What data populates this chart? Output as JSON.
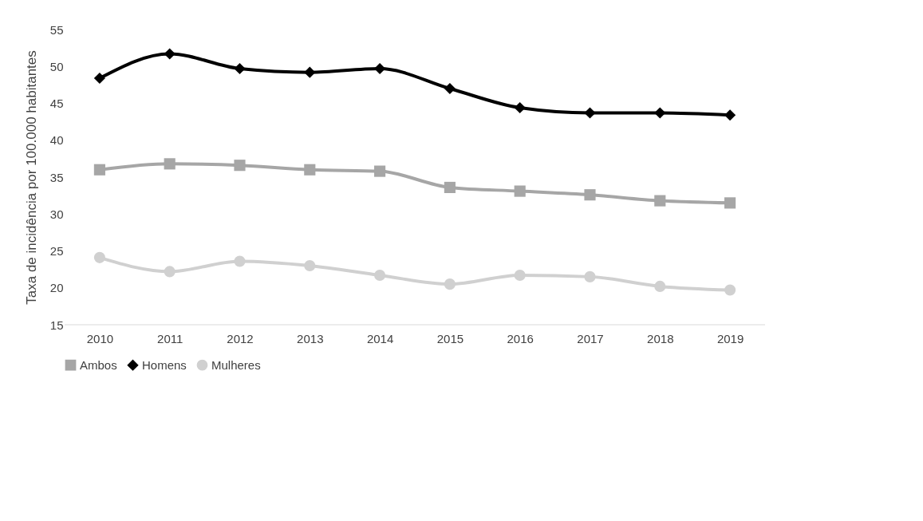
{
  "chart_data": {
    "type": "line",
    "ylabel": "Taxa de incidência por 100.000 habitantes",
    "categories": [
      "2010",
      "2011",
      "2012",
      "2013",
      "2014",
      "2015",
      "2016",
      "2017",
      "2018",
      "2019"
    ],
    "series": [
      {
        "name": "Ambos",
        "color": "#a6a6a6",
        "marker": "square",
        "values": [
          36.0,
          36.8,
          36.6,
          36.0,
          35.8,
          33.6,
          33.1,
          32.6,
          31.8,
          31.5
        ]
      },
      {
        "name": "Homens",
        "color": "#000000",
        "marker": "diamond",
        "values": [
          48.4,
          51.7,
          49.7,
          49.2,
          49.7,
          47.0,
          44.4,
          43.7,
          43.7,
          43.4
        ]
      },
      {
        "name": "Mulheres",
        "color": "#d0d0d0",
        "marker": "circle",
        "values": [
          24.1,
          22.2,
          23.6,
          23.0,
          21.7,
          20.5,
          21.7,
          21.5,
          20.2,
          19.7
        ]
      }
    ],
    "ylim": [
      15,
      55
    ],
    "yticks": [
      15,
      20,
      25,
      30,
      35,
      40,
      45,
      50,
      55
    ],
    "grid": false,
    "legend": "bottom",
    "line_style": "solid"
  }
}
